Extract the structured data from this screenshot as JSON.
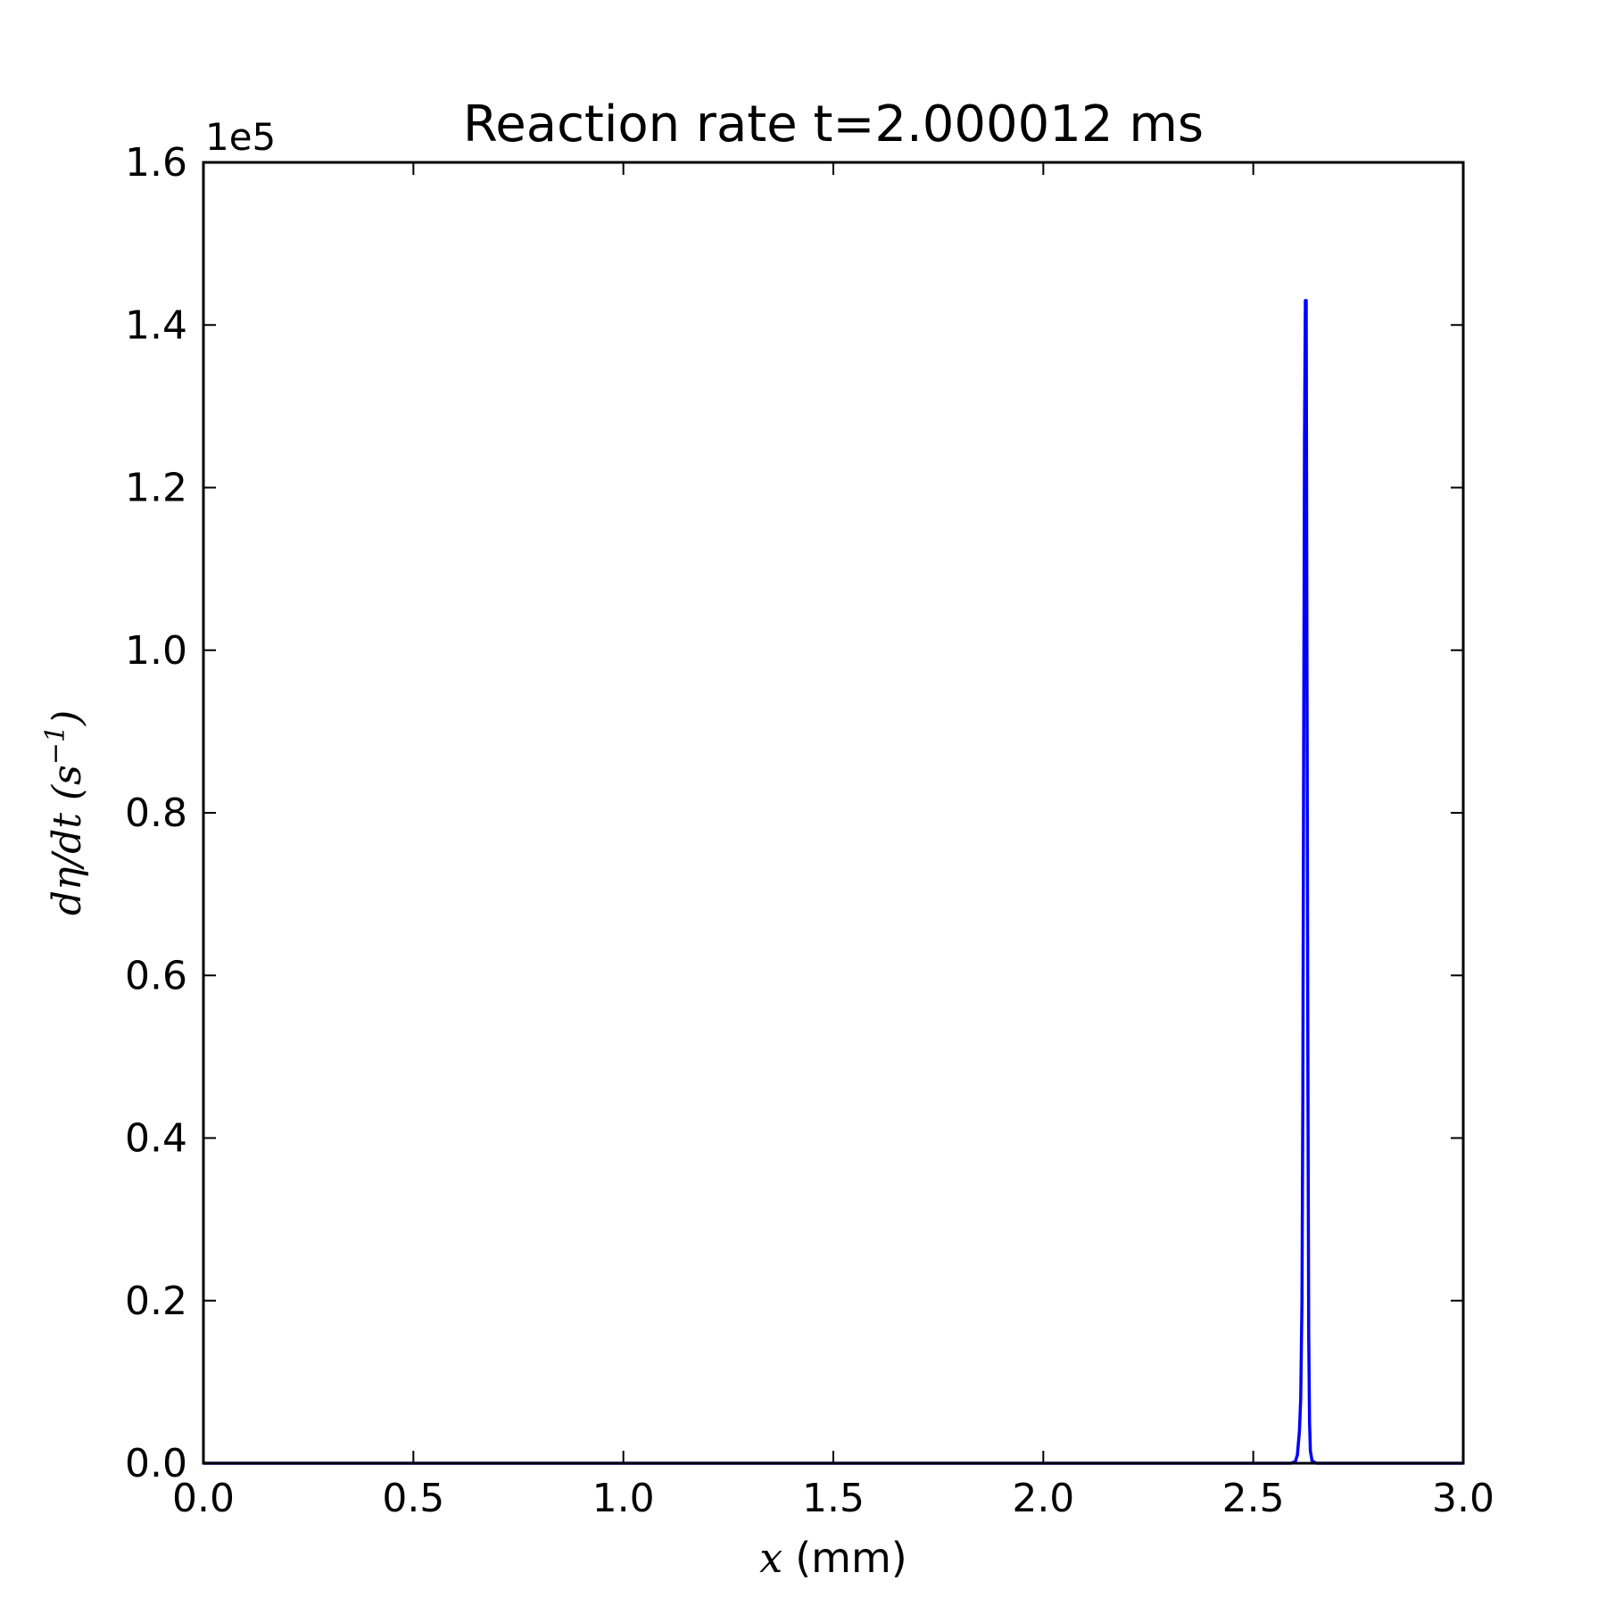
{
  "chart_data": {
    "type": "line",
    "title": "Reaction rate t=2.000012 ms",
    "xlabel_var": "x",
    "xlabel_unit": "(mm)",
    "ylabel_main": "dη/dt (s",
    "ylabel_sup": "−1",
    "ylabel_close": ")",
    "y_offset_label": "1e5",
    "xlim": [
      0.0,
      3.0
    ],
    "ylim": [
      0.0,
      1.6
    ],
    "xticks": [
      "0.0",
      "0.5",
      "1.0",
      "1.5",
      "2.0",
      "2.5",
      "3.0"
    ],
    "yticks": [
      "0.0",
      "0.2",
      "0.4",
      "0.6",
      "0.8",
      "1.0",
      "1.2",
      "1.4",
      "1.6"
    ],
    "grid": false,
    "line_color": "#0000ff",
    "series": [
      {
        "x": [
          0.0,
          2.55,
          2.59,
          2.6,
          2.605,
          2.61,
          2.613,
          2.616,
          2.618,
          2.62,
          2.622,
          2.624,
          2.626,
          2.628,
          2.63,
          2.632,
          2.634,
          2.636,
          2.64,
          2.65,
          2.7,
          3.0
        ],
        "y": [
          0.0,
          0.0,
          0.0,
          0.002,
          0.01,
          0.04,
          0.08,
          0.2,
          0.45,
          0.88,
          1.26,
          1.43,
          1.43,
          0.95,
          0.5,
          0.16,
          0.05,
          0.015,
          0.003,
          0.0,
          0.0,
          0.0
        ]
      }
    ]
  }
}
